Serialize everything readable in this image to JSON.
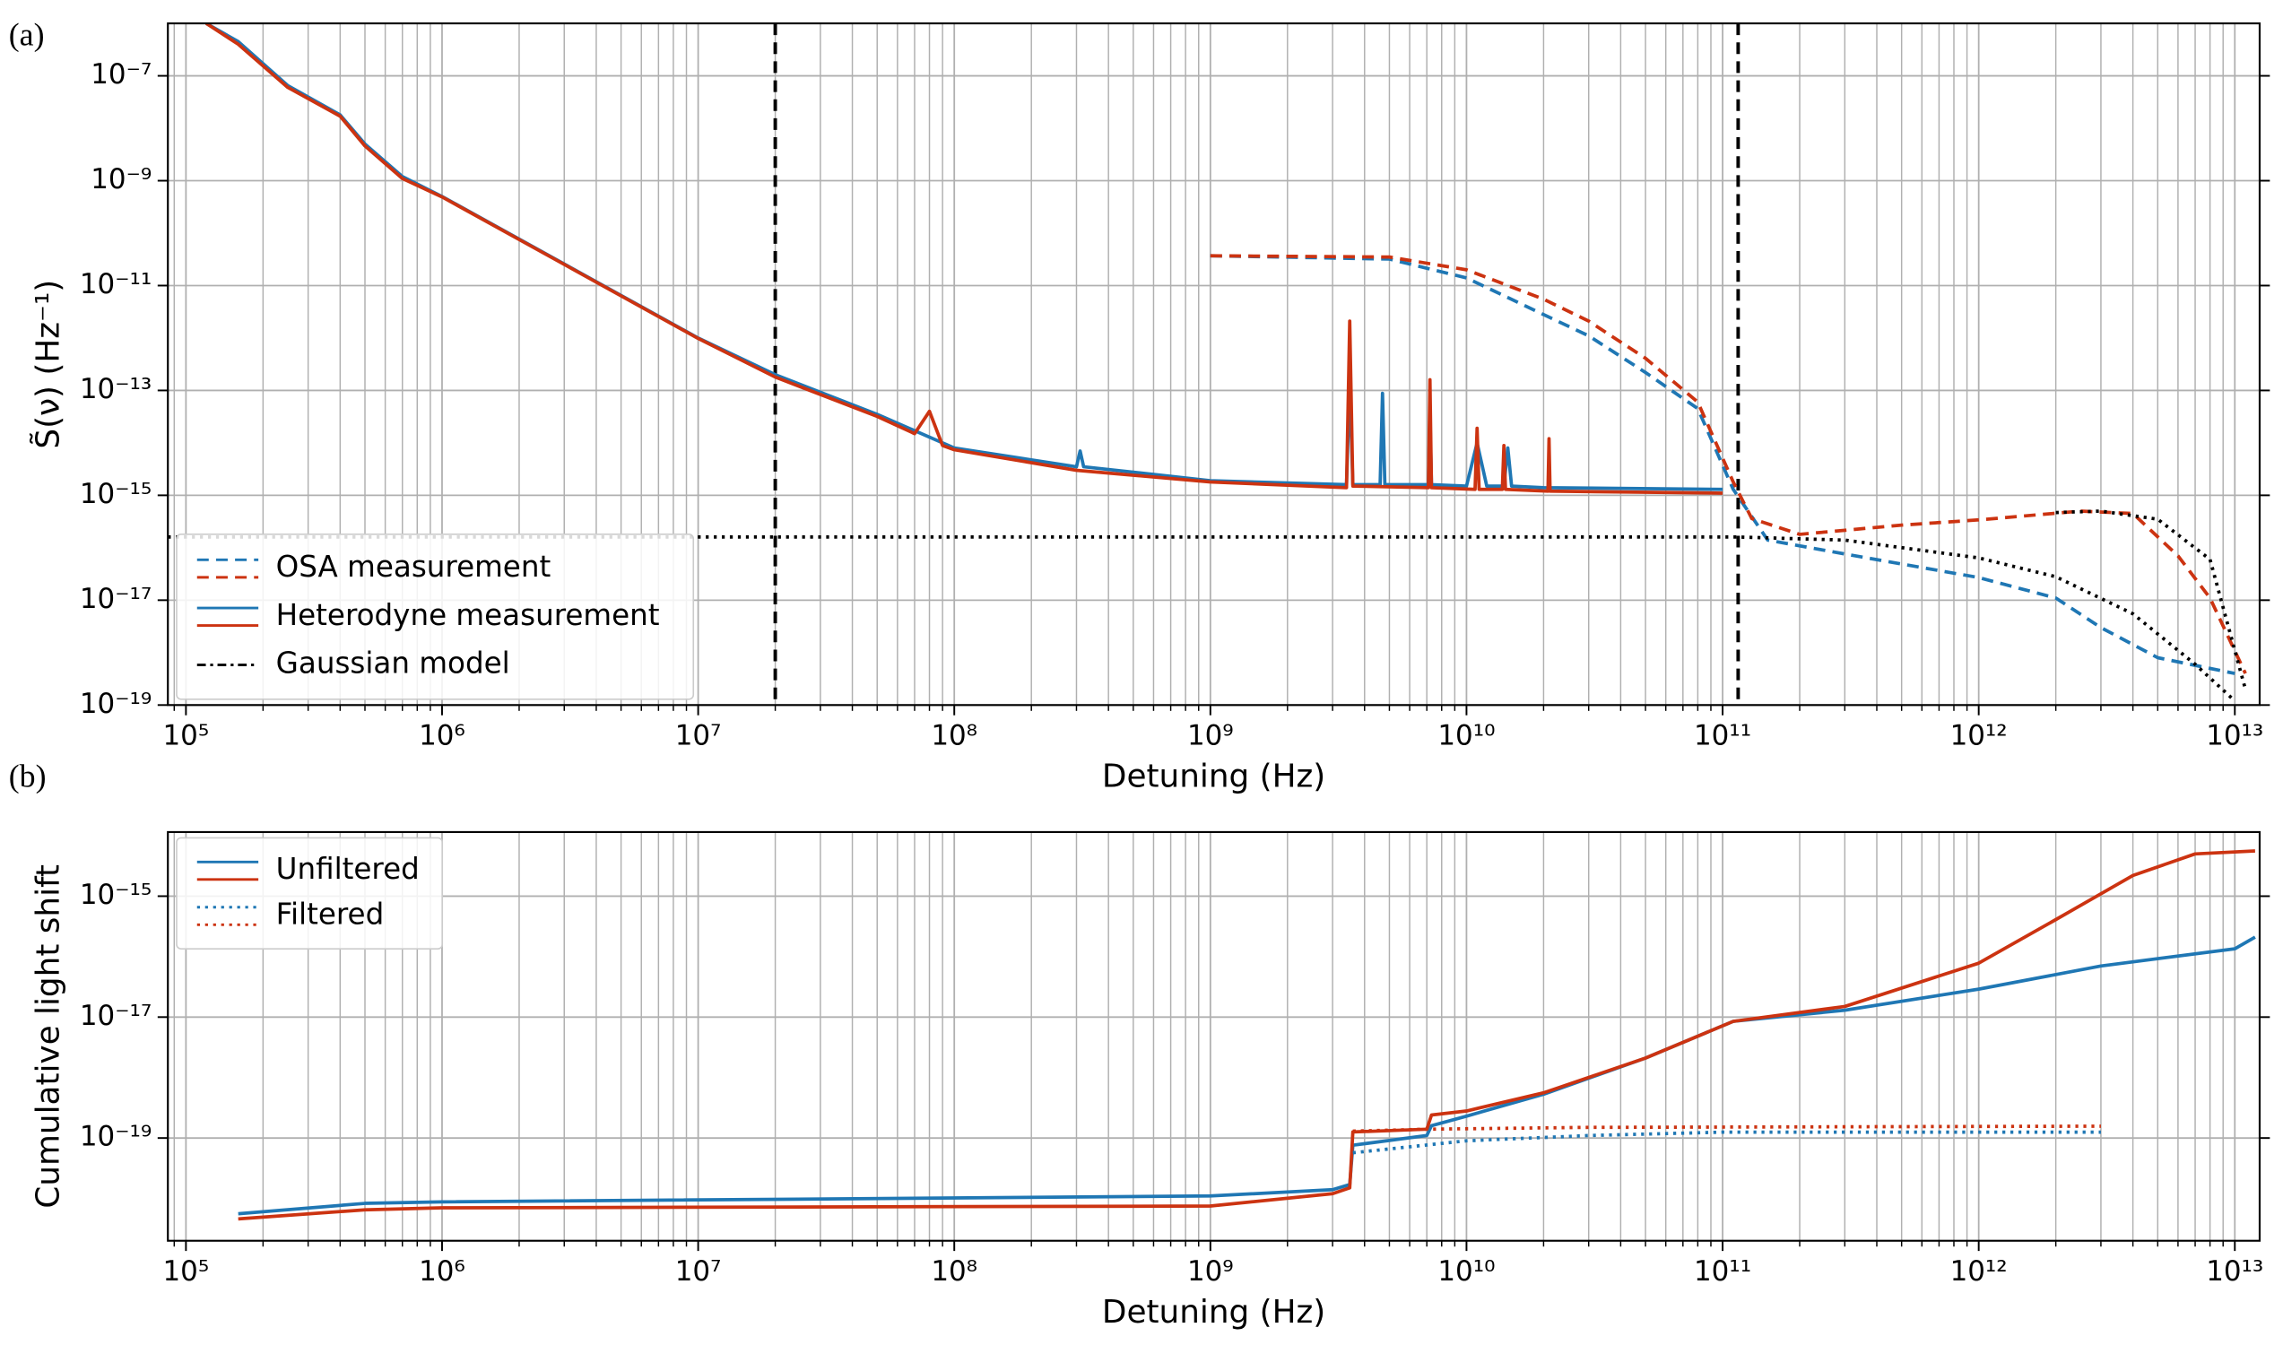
{
  "chart_data": [
    {
      "type": "line",
      "panel_label": "(a)",
      "xlabel": "Detuning (Hz)",
      "ylabel": "S̃(ν) (Hz⁻¹)",
      "xscale": "log",
      "yscale": "log",
      "grid": "both",
      "legend": "lower left",
      "xlim": [
        85000,
        12500000000000
      ],
      "ylim": [
        1e-19,
        1e-06
      ],
      "xticks": [
        {
          "value": 100000,
          "label": "10⁵"
        },
        {
          "value": 1000000,
          "label": "10⁶"
        },
        {
          "value": 10000000,
          "label": "10⁷"
        },
        {
          "value": 100000000,
          "label": "10⁸"
        },
        {
          "value": 1000000000,
          "label": "10⁹"
        },
        {
          "value": 10000000000,
          "label": "10¹⁰"
        },
        {
          "value": 100000000000,
          "label": "10¹¹"
        },
        {
          "value": 1000000000000,
          "label": "10¹²"
        },
        {
          "value": 10000000000000,
          "label": "10¹³"
        }
      ],
      "yticks": [
        {
          "value": 1e-07,
          "label": "10⁻⁷"
        },
        {
          "value": 1e-09,
          "label": "10⁻⁹"
        },
        {
          "value": 1e-11,
          "label": "10⁻¹¹"
        },
        {
          "value": 1e-13,
          "label": "10⁻¹³"
        },
        {
          "value": 1e-15,
          "label": "10⁻¹⁵"
        },
        {
          "value": 1e-17,
          "label": "10⁻¹⁷"
        },
        {
          "value": 1e-19,
          "label": "10⁻¹⁹"
        }
      ],
      "vlines": [
        20000000,
        115000000000
      ],
      "series": [
        {
          "name": "OSA measurement",
          "color": "#1f77b4",
          "style": "dashed",
          "x": [
            1000000000.0,
            5000000000.0,
            10000000000.0,
            20000000000.0,
            30000000000.0,
            50000000000.0,
            80000000000.0,
            110000000000.0,
            150000000000.0,
            300000000000.0,
            1000000000000.0,
            2000000000000.0,
            3000000000000.0,
            5000000000000.0,
            10000000000000.0
          ],
          "values": [
            3.7e-11,
            3.2e-11,
            1.4e-11,
            2.8e-12,
            1.1e-12,
            2.2e-13,
            4.5e-14,
            1.3e-15,
            1.4e-16,
            7.6e-17,
            2.7e-17,
            1.1e-17,
            3e-18,
            8e-19,
            4e-19
          ]
        },
        {
          "name": "OSA measurement",
          "color": "#cc3311",
          "style": "dashed",
          "x": [
            1000000000.0,
            5000000000.0,
            10000000000.0,
            20000000000.0,
            30000000000.0,
            50000000000.0,
            80000000000.0,
            110000000000.0,
            130000000000.0,
            200000000000.0,
            500000000000.0,
            1000000000000.0,
            2500000000000.0,
            4000000000000.0,
            6000000000000.0,
            8000000000000.0,
            11000000000000.0
          ],
          "values": [
            3.7e-11,
            3.5e-11,
            2e-11,
            5.5e-12,
            2.1e-12,
            4.1e-13,
            6e-14,
            1.8e-15,
            3.6e-16,
            1.8e-16,
            2.7e-16,
            3.4e-16,
            5e-16,
            4.5e-16,
            7e-17,
            1.1e-17,
            4e-19
          ]
        },
        {
          "name": "Heterodyne measurement",
          "color": "#1f77b4",
          "style": "solid",
          "x": [
            120000.0,
            160000.0,
            250000.0,
            400000.0,
            500000.0,
            700000.0,
            1000000.0,
            10000000.0,
            20000000.0,
            50000000.0,
            100000000.0,
            300000000.0,
            310000000.0,
            320000000.0,
            1000000000.0,
            3400000000.0,
            3500000000.0,
            3600000000.0,
            4600000000.0,
            4700000000.0,
            4800000000.0,
            7100000000.0,
            7200000000.0,
            7300000000.0,
            10000000000.0,
            11000000000.0,
            12000000000.0,
            14000000000.0,
            14500000000.0,
            15000000000.0,
            20000000000.0,
            100000000000.0
          ],
          "values": [
            1e-06,
            4.5e-07,
            6.5e-08,
            1.8e-08,
            5e-09,
            1.2e-09,
            5e-10,
            1e-12,
            2e-13,
            3.5e-14,
            8e-15,
            3.5e-15,
            7e-15,
            3.5e-15,
            1.9e-15,
            1.6e-15,
            1.5e-13,
            1.6e-15,
            1.6e-15,
            8.8e-14,
            1.6e-15,
            1.6e-15,
            4e-14,
            1.6e-15,
            1.5e-15,
            1e-14,
            1.5e-15,
            1.5e-15,
            8e-15,
            1.5e-15,
            1.4e-15,
            1.3e-15
          ]
        },
        {
          "name": "Heterodyne measurement",
          "color": "#cc3311",
          "style": "solid",
          "x": [
            120000.0,
            160000.0,
            250000.0,
            400000.0,
            500000.0,
            700000.0,
            1000000.0,
            10000000.0,
            20000000.0,
            50000000.0,
            70000000.0,
            80000000.0,
            90000000.0,
            100000000.0,
            300000000.0,
            1000000000.0,
            3400000000.0,
            3500000000.0,
            3600000000.0,
            7100000000.0,
            7200000000.0,
            7300000000.0,
            10800000000.0,
            11000000000.0,
            11200000000.0,
            13800000000.0,
            14000000000.0,
            14200000000.0,
            20800000000.0,
            21000000000.0,
            21200000000.0,
            100000000000.0
          ],
          "values": [
            1e-06,
            4e-07,
            6e-08,
            1.7e-08,
            4.6e-09,
            1.1e-09,
            4.9e-10,
            9.8e-13,
            1.8e-13,
            3.2e-14,
            1.5e-14,
            4e-14,
            8.9e-15,
            7.4e-15,
            3e-15,
            1.8e-15,
            1.4e-15,
            2.1e-12,
            1.5e-15,
            1.4e-15,
            1.6e-13,
            1.4e-15,
            1.3e-15,
            1.9e-14,
            1.3e-15,
            1.3e-15,
            8.9e-15,
            1.3e-15,
            1.2e-15,
            1.2e-14,
            1.2e-15,
            1.1e-15
          ]
        },
        {
          "name": "Gaussian model",
          "color": "#000000",
          "style": "dotted",
          "x": [
            85000,
            115000000000.0,
            300000000000.0,
            1000000000000.0,
            2000000000000.0,
            4000000000000.0,
            7000000000000.0,
            10000000000000.0
          ],
          "values": [
            1.6e-16,
            1.6e-16,
            1.4e-16,
            6.4e-17,
            2.8e-17,
            5.5e-18,
            6e-19,
            1.2e-19
          ]
        },
        {
          "name": "Gaussian model",
          "color": "#000000",
          "style": "dotted",
          "x": [
            2000000000000.0,
            3000000000000.0,
            5000000000000.0,
            8000000000000.0,
            11000000000000.0
          ],
          "values": [
            4.7e-16,
            5e-16,
            3.5e-16,
            6e-17,
            2e-19
          ]
        }
      ]
    },
    {
      "type": "line",
      "panel_label": "(b)",
      "xlabel": "Detuning (Hz)",
      "ylabel": "Cumulative light shift",
      "xscale": "log",
      "yscale": "log",
      "grid": "both",
      "legend": "upper left",
      "xlim": [
        85000,
        12500000000000
      ],
      "ylim": [
        2e-21,
        1.15e-14
      ],
      "xticks": [
        {
          "value": 100000,
          "label": "10⁵"
        },
        {
          "value": 1000000,
          "label": "10⁶"
        },
        {
          "value": 10000000,
          "label": "10⁷"
        },
        {
          "value": 100000000,
          "label": "10⁸"
        },
        {
          "value": 1000000000,
          "label": "10⁹"
        },
        {
          "value": 10000000000,
          "label": "10¹⁰"
        },
        {
          "value": 100000000000,
          "label": "10¹¹"
        },
        {
          "value": 1000000000000,
          "label": "10¹²"
        },
        {
          "value": 10000000000000,
          "label": "10¹³"
        }
      ],
      "yticks": [
        {
          "value": 1e-15,
          "label": "10⁻¹⁵"
        },
        {
          "value": 1e-17,
          "label": "10⁻¹⁷"
        },
        {
          "value": 1e-19,
          "label": "10⁻¹⁹"
        }
      ],
      "series": [
        {
          "name": "Unfiltered",
          "color": "#1f77b4",
          "style": "solid",
          "x": [
            160000.0,
            500000.0,
            1000000.0,
            1000000000.0,
            3000000000.0,
            3500000000.0,
            3600000000.0,
            7000000000.0,
            7300000000.0,
            10000000000.0,
            20000000000.0,
            50000000000.0,
            110000000000.0,
            300000000000.0,
            1000000000000.0,
            3000000000000.0,
            10000000000000.0,
            12000000000000.0
          ],
          "values": [
            5.6e-21,
            8.3e-21,
            8.8e-21,
            1.1e-20,
            1.4e-20,
            1.7e-20,
            7.6e-20,
            1.1e-19,
            1.6e-19,
            2.3e-19,
            5.3e-19,
            2.1e-18,
            8.5e-18,
            1.3e-17,
            2.9e-17,
            7e-17,
            1.35e-16,
            2.1e-16
          ]
        },
        {
          "name": "Unfiltered",
          "color": "#cc3311",
          "style": "solid",
          "x": [
            160000.0,
            500000.0,
            1000000.0,
            1000000000.0,
            3000000000.0,
            3500000000.0,
            3600000000.0,
            7000000000.0,
            7300000000.0,
            10000000000.0,
            20000000000.0,
            50000000000.0,
            110000000000.0,
            300000000000.0,
            1000000000000.0,
            2000000000000.0,
            4000000000000.0,
            7000000000000.0,
            12000000000000.0
          ],
          "values": [
            4.6e-21,
            6.5e-21,
            7e-21,
            7.5e-21,
            1.2e-20,
            1.5e-20,
            1.26e-19,
            1.4e-19,
            2.4e-19,
            2.8e-19,
            5.6e-19,
            2.1e-18,
            8.5e-18,
            1.5e-17,
            7.8e-17,
            4.1e-16,
            2.2e-15,
            5e-15,
            5.6e-15
          ]
        },
        {
          "name": "Filtered",
          "color": "#1f77b4",
          "style": "dotted",
          "x": [
            3600000000.0,
            10000000000.0,
            30000000000.0,
            100000000000.0,
            3000000000000.0
          ],
          "values": [
            5.7e-20,
            9e-20,
            1.1e-19,
            1.25e-19,
            1.25e-19
          ]
        },
        {
          "name": "Filtered",
          "color": "#cc3311",
          "style": "dotted",
          "x": [
            3600000000.0,
            7000000000.0,
            30000000000.0,
            3000000000000.0
          ],
          "values": [
            1.3e-19,
            1.4e-19,
            1.5e-19,
            1.57e-19
          ]
        }
      ]
    }
  ]
}
